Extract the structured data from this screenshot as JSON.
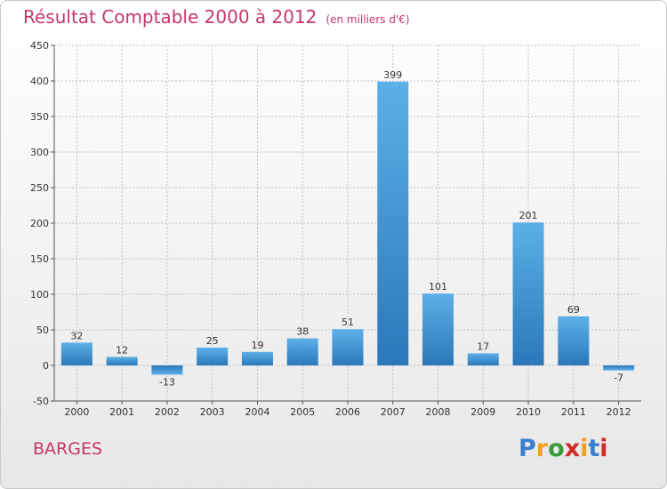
{
  "chart_data": {
    "type": "bar",
    "title": "Résultat Comptable 2000 à 2012",
    "subtitle": "(en milliers d'€)",
    "categories": [
      "2000",
      "2001",
      "2002",
      "2003",
      "2004",
      "2005",
      "2006",
      "2007",
      "2008",
      "2009",
      "2010",
      "2011",
      "2012"
    ],
    "values": [
      32,
      12,
      -13,
      25,
      19,
      38,
      51,
      399,
      101,
      17,
      201,
      69,
      -7
    ],
    "ylim": [
      -50,
      450
    ],
    "yticks": [
      -50,
      0,
      50,
      100,
      150,
      200,
      250,
      300,
      350,
      400,
      450
    ],
    "xlabel": "",
    "ylabel": "",
    "grid": true
  },
  "location": "BARGES",
  "brand": "Proxiti",
  "colors": {
    "title": "#c8366a",
    "bar_light": "#5aaee6",
    "bar_dark": "#2f7fc0",
    "grid": "#c0c0c0"
  }
}
